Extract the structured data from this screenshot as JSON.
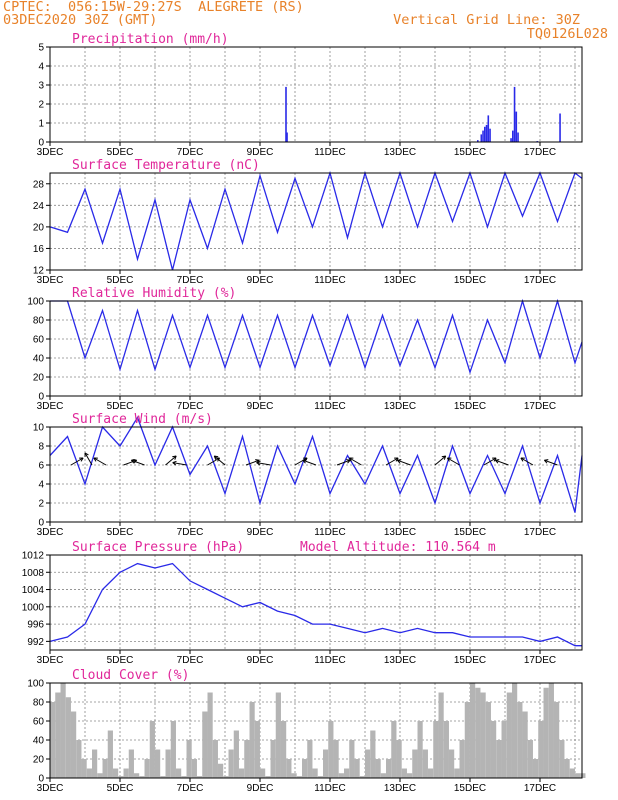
{
  "header": {
    "line1_left": "CPTEC:  056:15W-29:27S  ALEGRETE (RS)",
    "line2_left": "03DEC2020 30Z (GMT)",
    "line1_right": "Vertical Grid Line: 30Z",
    "line2_right": "TQ0126L028"
  },
  "colors": {
    "series": "#2a2ae8",
    "title": "#e0279a",
    "header": "#e8822a",
    "cloud": "#b4b4b4",
    "grid": "#888888"
  },
  "chart_data": [
    {
      "type": "bar",
      "title": "Precipitation (mm/h)",
      "ylim": [
        0,
        5
      ],
      "yticks": [
        0,
        1,
        2,
        3,
        4,
        5
      ],
      "x_ticks": [
        "3DEC",
        "5DEC",
        "7DEC",
        "9DEC",
        "11DEC",
        "13DEC",
        "15DEC",
        "17DEC"
      ],
      "x_range_days": [
        0,
        15.2
      ],
      "bars": [
        {
          "day": 6.72,
          "value": 2.9
        },
        {
          "day": 6.75,
          "value": 0.5
        },
        {
          "day": 12.2,
          "value": 0.1
        },
        {
          "day": 12.3,
          "value": 0.4
        },
        {
          "day": 12.35,
          "value": 0.6
        },
        {
          "day": 12.4,
          "value": 0.8
        },
        {
          "day": 12.45,
          "value": 0.9
        },
        {
          "day": 12.5,
          "value": 1.4
        },
        {
          "day": 12.55,
          "value": 0.7
        },
        {
          "day": 13.15,
          "value": 0.2
        },
        {
          "day": 13.2,
          "value": 0.6
        },
        {
          "day": 13.25,
          "value": 2.9
        },
        {
          "day": 13.3,
          "value": 1.6
        },
        {
          "day": 13.35,
          "value": 0.5
        },
        {
          "day": 13.9,
          "value": 0.05
        },
        {
          "day": 14.55,
          "value": 1.5
        }
      ]
    },
    {
      "type": "line",
      "title": "Surface Temperature (nC)",
      "ylim": [
        12,
        30
      ],
      "yticks": [
        12,
        16,
        20,
        24,
        28
      ],
      "x_ticks": [
        "3DEC",
        "5DEC",
        "7DEC",
        "9DEC",
        "11DEC",
        "13DEC",
        "15DEC",
        "17DEC"
      ],
      "series": [
        {
          "x": [
            0,
            0.5,
            1,
            1.5,
            2,
            2.5,
            3,
            3.5,
            4,
            4.5,
            5,
            5.5,
            6,
            6.5,
            7,
            7.5,
            8,
            8.5,
            9,
            9.5,
            10,
            10.5,
            11,
            11.5,
            12,
            12.5,
            13,
            13.5,
            14,
            14.5,
            15,
            15.2
          ],
          "y": [
            20,
            19,
            27,
            17,
            27,
            14,
            25,
            12,
            25,
            16,
            27,
            17,
            29.5,
            19,
            29,
            20,
            30,
            18,
            30,
            20,
            30,
            20,
            30,
            21,
            30,
            20,
            30,
            22,
            30,
            21,
            30,
            29
          ]
        }
      ]
    },
    {
      "type": "line",
      "title": "Relative Humidity (%)",
      "ylim": [
        0,
        100
      ],
      "yticks": [
        0,
        20,
        40,
        60,
        80,
        100
      ],
      "x_ticks": [
        "3DEC",
        "5DEC",
        "7DEC",
        "9DEC",
        "11DEC",
        "13DEC",
        "15DEC",
        "17DEC"
      ],
      "series": [
        {
          "x": [
            0,
            0.5,
            1,
            1.5,
            2,
            2.5,
            3,
            3.5,
            4,
            4.5,
            5,
            5.5,
            6,
            6.5,
            7,
            7.5,
            8,
            8.5,
            9,
            9.5,
            10,
            10.5,
            11,
            11.5,
            12,
            12.5,
            13,
            13.5,
            14,
            14.5,
            15,
            15.2
          ],
          "y": [
            100,
            100,
            40,
            90,
            28,
            90,
            28,
            85,
            30,
            85,
            30,
            85,
            30,
            85,
            30,
            85,
            32,
            85,
            30,
            85,
            32,
            80,
            30,
            85,
            25,
            80,
            35,
            100,
            40,
            100,
            35,
            57
          ]
        }
      ]
    },
    {
      "type": "line",
      "title": "Surface Wind (m/s)",
      "ylim": [
        0,
        10
      ],
      "yticks": [
        0,
        2,
        4,
        6,
        8,
        10
      ],
      "x_ticks": [
        "3DEC",
        "5DEC",
        "7DEC",
        "9DEC",
        "11DEC",
        "13DEC",
        "15DEC",
        "17DEC"
      ],
      "series": [
        {
          "x": [
            0,
            0.5,
            1,
            1.5,
            2,
            2.5,
            3,
            3.5,
            4,
            4.5,
            5,
            5.5,
            6,
            6.5,
            7,
            7.5,
            8,
            8.5,
            9,
            9.5,
            10,
            10.5,
            11,
            11.5,
            12,
            12.5,
            13,
            13.5,
            14,
            14.5,
            15,
            15.2
          ],
          "y": [
            7,
            9,
            4,
            10,
            8,
            11,
            6,
            10,
            5,
            8,
            3,
            9,
            2,
            8,
            4,
            9,
            3,
            7,
            4,
            8,
            3,
            7,
            2,
            8,
            3,
            7,
            3,
            8,
            2,
            7,
            1,
            7
          ]
        }
      ],
      "arrows": [
        {
          "day": 0.6,
          "angle_deg": -30
        },
        {
          "day": 1.2,
          "angle_deg": -120
        },
        {
          "day": 1.6,
          "angle_deg": -150
        },
        {
          "day": 2.1,
          "angle_deg": -20
        },
        {
          "day": 2.7,
          "angle_deg": -160
        },
        {
          "day": 3.3,
          "angle_deg": -40
        },
        {
          "day": 3.9,
          "angle_deg": -170
        },
        {
          "day": 4.5,
          "angle_deg": -30
        },
        {
          "day": 5.0,
          "angle_deg": -140
        },
        {
          "day": 5.6,
          "angle_deg": -20
        },
        {
          "day": 6.3,
          "angle_deg": -170
        },
        {
          "day": 7.0,
          "angle_deg": -30
        },
        {
          "day": 7.6,
          "angle_deg": -160
        },
        {
          "day": 8.2,
          "angle_deg": -20
        },
        {
          "day": 8.9,
          "angle_deg": -150
        },
        {
          "day": 9.6,
          "angle_deg": -30
        },
        {
          "day": 10.3,
          "angle_deg": -160
        },
        {
          "day": 11.0,
          "angle_deg": -40
        },
        {
          "day": 11.7,
          "angle_deg": -150
        },
        {
          "day": 12.4,
          "angle_deg": -30
        },
        {
          "day": 13.1,
          "angle_deg": -160
        },
        {
          "day": 13.8,
          "angle_deg": -150
        },
        {
          "day": 14.5,
          "angle_deg": -160
        }
      ]
    },
    {
      "type": "line",
      "title": "Surface Pressure (hPa)",
      "annotation": "Model Altitude: 110.564 m",
      "ylim": [
        990,
        1012
      ],
      "yticks": [
        992,
        996,
        1000,
        1004,
        1008,
        1012
      ],
      "x_ticks": [
        "3DEC",
        "5DEC",
        "7DEC",
        "9DEC",
        "11DEC",
        "13DEC",
        "15DEC",
        "17DEC"
      ],
      "series": [
        {
          "x": [
            0,
            0.5,
            1,
            1.5,
            2,
            2.5,
            3,
            3.5,
            4,
            4.5,
            5,
            5.5,
            6,
            6.5,
            7,
            7.5,
            8,
            8.5,
            9,
            9.5,
            10,
            10.5,
            11,
            11.5,
            12,
            12.5,
            13,
            13.5,
            14,
            14.5,
            15,
            15.2
          ],
          "y": [
            992,
            993,
            996,
            1004,
            1008,
            1010,
            1009,
            1010,
            1006,
            1004,
            1002,
            1000,
            1001,
            999,
            998,
            996,
            996,
            995,
            994,
            995,
            994,
            995,
            994,
            994,
            993,
            993,
            993,
            993,
            992,
            993,
            991,
            991
          ]
        }
      ]
    },
    {
      "type": "bar",
      "title": "Cloud Cover (%)",
      "ylim": [
        0,
        100
      ],
      "yticks": [
        0,
        20,
        40,
        60,
        80,
        100
      ],
      "x_ticks": [
        "3DEC",
        "5DEC",
        "7DEC",
        "9DEC",
        "11DEC",
        "13DEC",
        "15DEC",
        "17DEC"
      ],
      "x": [
        0.0,
        0.15,
        0.3,
        0.45,
        0.6,
        0.75,
        0.9,
        1.05,
        1.2,
        1.35,
        1.5,
        1.65,
        1.8,
        1.95,
        2.1,
        2.25,
        2.4,
        2.55,
        2.7,
        2.85,
        3.0,
        3.15,
        3.3,
        3.45,
        3.6,
        3.75,
        3.9,
        4.05,
        4.2,
        4.35,
        4.5,
        4.65,
        4.8,
        4.95,
        5.1,
        5.25,
        5.4,
        5.55,
        5.7,
        5.85,
        6.0,
        6.15,
        6.3,
        6.45,
        6.6,
        6.75,
        6.9,
        7.05,
        7.2,
        7.35,
        7.5,
        7.65,
        7.8,
        7.95,
        8.1,
        8.25,
        8.4,
        8.55,
        8.7,
        8.85,
        9.0,
        9.15,
        9.3,
        9.45,
        9.6,
        9.75,
        9.9,
        10.05,
        10.2,
        10.35,
        10.5,
        10.65,
        10.8,
        10.95,
        11.1,
        11.25,
        11.4,
        11.55,
        11.7,
        11.85,
        12.0,
        12.15,
        12.3,
        12.45,
        12.6,
        12.75,
        12.9,
        13.05,
        13.2,
        13.35,
        13.5,
        13.65,
        13.8,
        13.95,
        14.1,
        14.25,
        14.4,
        14.55,
        14.7,
        14.85,
        15.0,
        15.15
      ],
      "values": [
        80,
        90,
        100,
        85,
        70,
        40,
        20,
        10,
        30,
        5,
        20,
        50,
        10,
        2,
        10,
        30,
        5,
        2,
        20,
        60,
        30,
        2,
        30,
        60,
        10,
        2,
        40,
        20,
        2,
        70,
        90,
        40,
        15,
        2,
        30,
        50,
        10,
        40,
        80,
        60,
        10,
        2,
        40,
        90,
        60,
        20,
        5,
        2,
        20,
        40,
        10,
        2,
        30,
        60,
        40,
        5,
        10,
        40,
        20,
        2,
        30,
        50,
        20,
        5,
        20,
        60,
        40,
        10,
        5,
        30,
        60,
        30,
        10,
        60,
        90,
        60,
        30,
        10,
        40,
        80,
        100,
        95,
        90,
        80,
        60,
        40,
        60,
        90,
        100,
        80,
        70,
        40,
        20,
        60,
        95,
        100,
        80,
        40,
        20,
        10,
        5,
        5
      ]
    }
  ]
}
